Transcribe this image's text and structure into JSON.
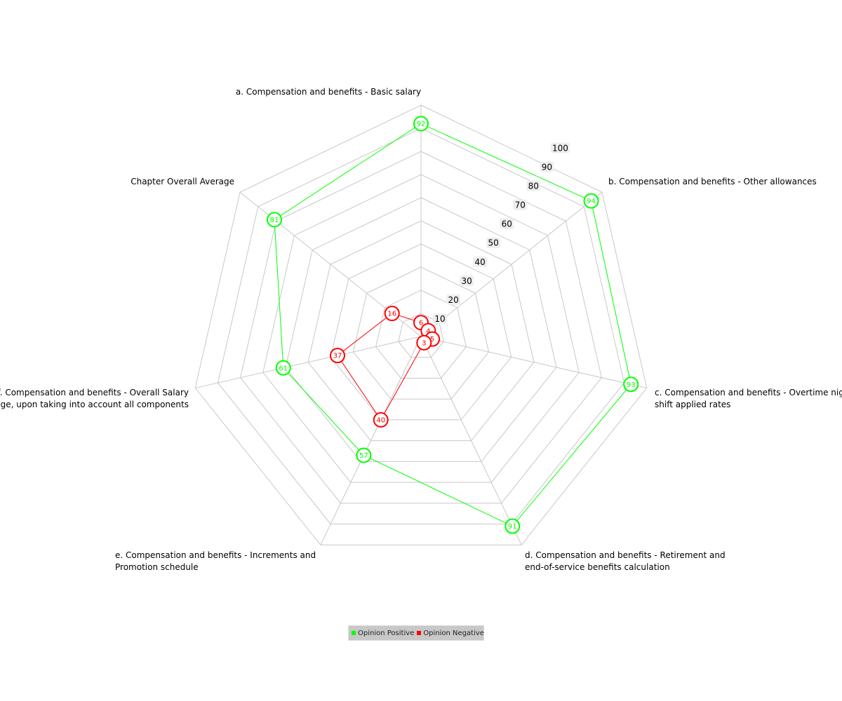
{
  "chart_data": {
    "type": "radar",
    "title": "",
    "axes": [
      "a. Compensation and benefits - Basic salary",
      "b. Compensation and benefits - Other allowances",
      "c. Compensation and benefits - Overtime  night shift applied rates",
      "d. Compensation and benefits - Retirement and end-of-service benefits calculation",
      "e. Compensation and benefits - Increments and Promotion schedule",
      "Compensation and benefits - Overall Salary package, upon taking into account all components",
      "Chapter Overall Average"
    ],
    "axis_label_lines": [
      [
        "a. Compensation and benefits - Basic salary"
      ],
      [
        "b. Compensation and benefits - Other allowances"
      ],
      [
        "c. Compensation and benefits - Overtime  night",
        "shift applied rates"
      ],
      [
        "d. Compensation and benefits - Retirement and",
        "end-of-service benefits calculation"
      ],
      [
        "e. Compensation and benefits - Increments and",
        "Promotion schedule"
      ],
      [
        "f. Compensation and benefits - Overall Salary",
        "package, upon taking into account all components"
      ],
      [
        "Chapter Overall Average"
      ]
    ],
    "rlim": [
      0,
      100
    ],
    "ticks": [
      10,
      20,
      30,
      40,
      50,
      60,
      70,
      80,
      90,
      100
    ],
    "tick_labels": [
      "10",
      "20",
      "30",
      "40",
      "50",
      "60",
      "70",
      "80",
      "90",
      "100"
    ],
    "series": [
      {
        "name": "Opinion Positive",
        "color": "#00ff00",
        "values": [
          92,
          94,
          93,
          91,
          57,
          61,
          81
        ]
      },
      {
        "name": "Opinion Negative",
        "color": "#ff0000",
        "values": [
          6,
          4,
          5,
          3,
          40,
          37,
          16
        ]
      }
    ],
    "grid": true,
    "legend": "bottom-center"
  }
}
